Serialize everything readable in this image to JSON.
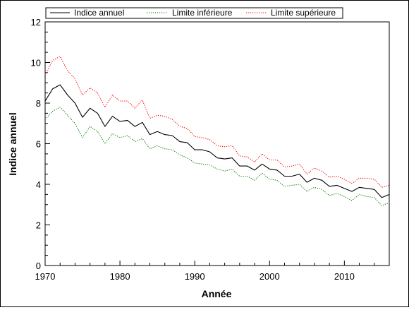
{
  "chart_data": {
    "type": "line",
    "xlabel": "Année",
    "ylabel": "Indice annuel",
    "xlim": [
      1970,
      2016
    ],
    "ylim": [
      0,
      12
    ],
    "x_ticks": [
      1970,
      1980,
      1990,
      2000,
      2010
    ],
    "y_ticks": [
      0,
      2,
      4,
      6,
      8,
      10,
      12
    ],
    "legend_position": "top",
    "x": [
      1970,
      1971,
      1972,
      1973,
      1974,
      1975,
      1976,
      1977,
      1978,
      1979,
      1980,
      1981,
      1982,
      1983,
      1984,
      1985,
      1986,
      1987,
      1988,
      1989,
      1990,
      1991,
      1992,
      1993,
      1994,
      1995,
      1996,
      1997,
      1998,
      1999,
      2000,
      2001,
      2002,
      2003,
      2004,
      2005,
      2006,
      2007,
      2008,
      2009,
      2010,
      2011,
      2012,
      2013,
      2014,
      2015,
      2016
    ],
    "series": [
      {
        "name": "Indice annuel",
        "color": "#000000",
        "style": "solid",
        "values": [
          8.1,
          8.7,
          8.9,
          8.4,
          8.0,
          7.3,
          7.75,
          7.5,
          6.85,
          7.35,
          7.1,
          7.15,
          6.85,
          7.05,
          6.45,
          6.6,
          6.45,
          6.4,
          6.1,
          6.05,
          5.7,
          5.7,
          5.6,
          5.3,
          5.25,
          5.3,
          4.9,
          4.9,
          4.7,
          5.0,
          4.75,
          4.7,
          4.4,
          4.4,
          4.5,
          4.1,
          4.3,
          4.2,
          3.9,
          3.95,
          3.8,
          3.65,
          3.85,
          3.8,
          3.75,
          3.35,
          3.5
        ]
      },
      {
        "name": "Limite inférieure",
        "color": "#008000",
        "style": "dotted",
        "values": [
          7.2,
          7.6,
          7.8,
          7.4,
          7.0,
          6.3,
          6.85,
          6.6,
          6.0,
          6.5,
          6.3,
          6.4,
          6.1,
          6.25,
          5.75,
          5.9,
          5.75,
          5.7,
          5.45,
          5.3,
          5.05,
          5.0,
          4.95,
          4.75,
          4.65,
          4.75,
          4.4,
          4.4,
          4.2,
          4.55,
          4.25,
          4.2,
          3.9,
          3.95,
          4.0,
          3.65,
          3.85,
          3.75,
          3.45,
          3.55,
          3.4,
          3.2,
          3.5,
          3.4,
          3.35,
          2.95,
          3.1
        ]
      },
      {
        "name": "Limite supérieure",
        "color": "#ff0000",
        "style": "dotted",
        "values": [
          9.4,
          10.1,
          10.3,
          9.6,
          9.2,
          8.4,
          8.75,
          8.5,
          7.8,
          8.4,
          8.1,
          8.1,
          7.75,
          8.15,
          7.25,
          7.4,
          7.35,
          7.2,
          6.85,
          6.75,
          6.35,
          6.3,
          6.2,
          5.9,
          5.85,
          5.9,
          5.4,
          5.35,
          5.1,
          5.5,
          5.2,
          5.2,
          4.85,
          4.9,
          5.0,
          4.5,
          4.8,
          4.65,
          4.35,
          4.4,
          4.25,
          4.05,
          4.3,
          4.3,
          4.25,
          3.85,
          3.95
        ]
      }
    ]
  }
}
